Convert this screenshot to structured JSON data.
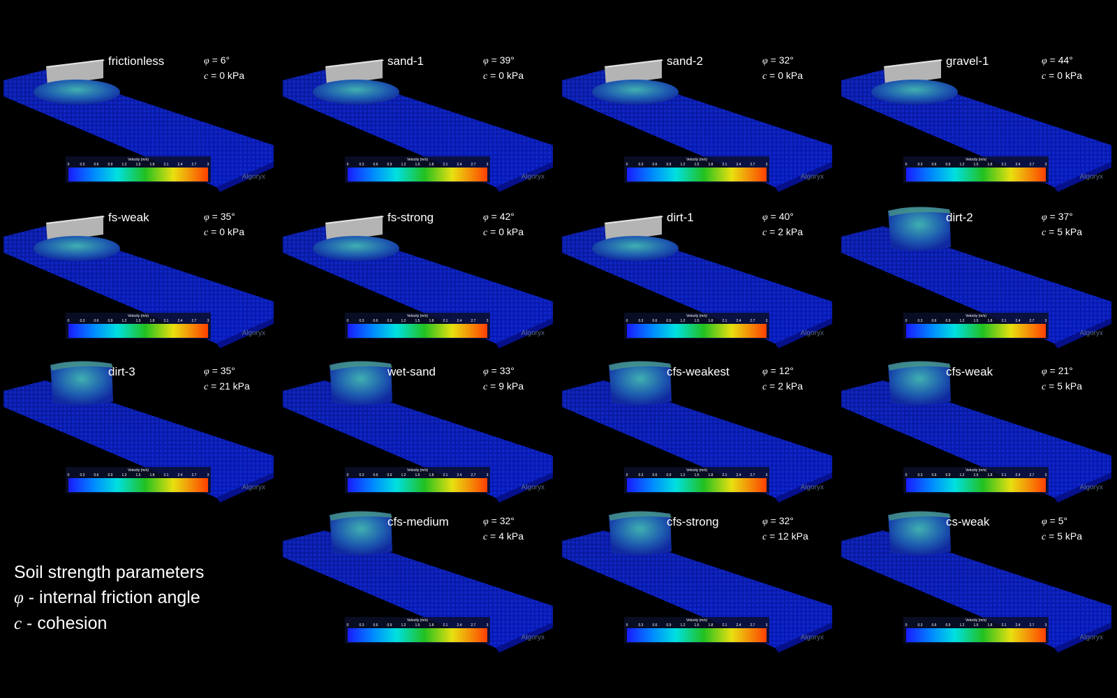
{
  "symbols": {
    "phi": "φ",
    "c": "c",
    "eq": " = "
  },
  "colorbar": {
    "title": "Velocity (m/s)",
    "ticks": [
      "0",
      "0.3",
      "0.6",
      "0.9",
      "1.2",
      "1.5",
      "1.8",
      "2.1",
      "2.4",
      "2.7",
      "3"
    ],
    "watermark": "Algoryx"
  },
  "panels": [
    {
      "name": "frictionless",
      "phi": "6°",
      "c": "0 kPa",
      "shape": "blade"
    },
    {
      "name": "sand-1",
      "phi": "39°",
      "c": "0 kPa",
      "shape": "blade"
    },
    {
      "name": "sand-2",
      "phi": "32°",
      "c": "0 kPa",
      "shape": "blade"
    },
    {
      "name": "gravel-1",
      "phi": "44°",
      "c": "0 kPa",
      "shape": "blade"
    },
    {
      "name": "fs-weak",
      "phi": "35°",
      "c": "0 kPa",
      "shape": "blade"
    },
    {
      "name": "fs-strong",
      "phi": "42°",
      "c": "0 kPa",
      "shape": "blade"
    },
    {
      "name": "dirt-1",
      "phi": "40°",
      "c": "2 kPa",
      "shape": "blade"
    },
    {
      "name": "dirt-2",
      "phi": "37°",
      "c": "5 kPa",
      "shape": "block"
    },
    {
      "name": "dirt-3",
      "phi": "35°",
      "c": "21 kPa",
      "shape": "block"
    },
    {
      "name": "wet-sand",
      "phi": "33°",
      "c": "9 kPa",
      "shape": "block"
    },
    {
      "name": "cfs-weakest",
      "phi": "12°",
      "c": "2 kPa",
      "shape": "block"
    },
    {
      "name": "cfs-weak",
      "phi": "21°",
      "c": "5 kPa",
      "shape": "block"
    },
    {
      "name": "cfs-medium",
      "phi": "32°",
      "c": "4 kPa",
      "shape": "block"
    },
    {
      "name": "cfs-strong",
      "phi": "32°",
      "c": "12 kPa",
      "shape": "block"
    },
    {
      "name": "cs-weak",
      "phi": "5°",
      "c": "5 kPa",
      "shape": "block"
    }
  ],
  "legend": {
    "title": "Soil strength parameters",
    "phi_desc": " - internal friction angle",
    "c_desc": " - cohesion"
  }
}
